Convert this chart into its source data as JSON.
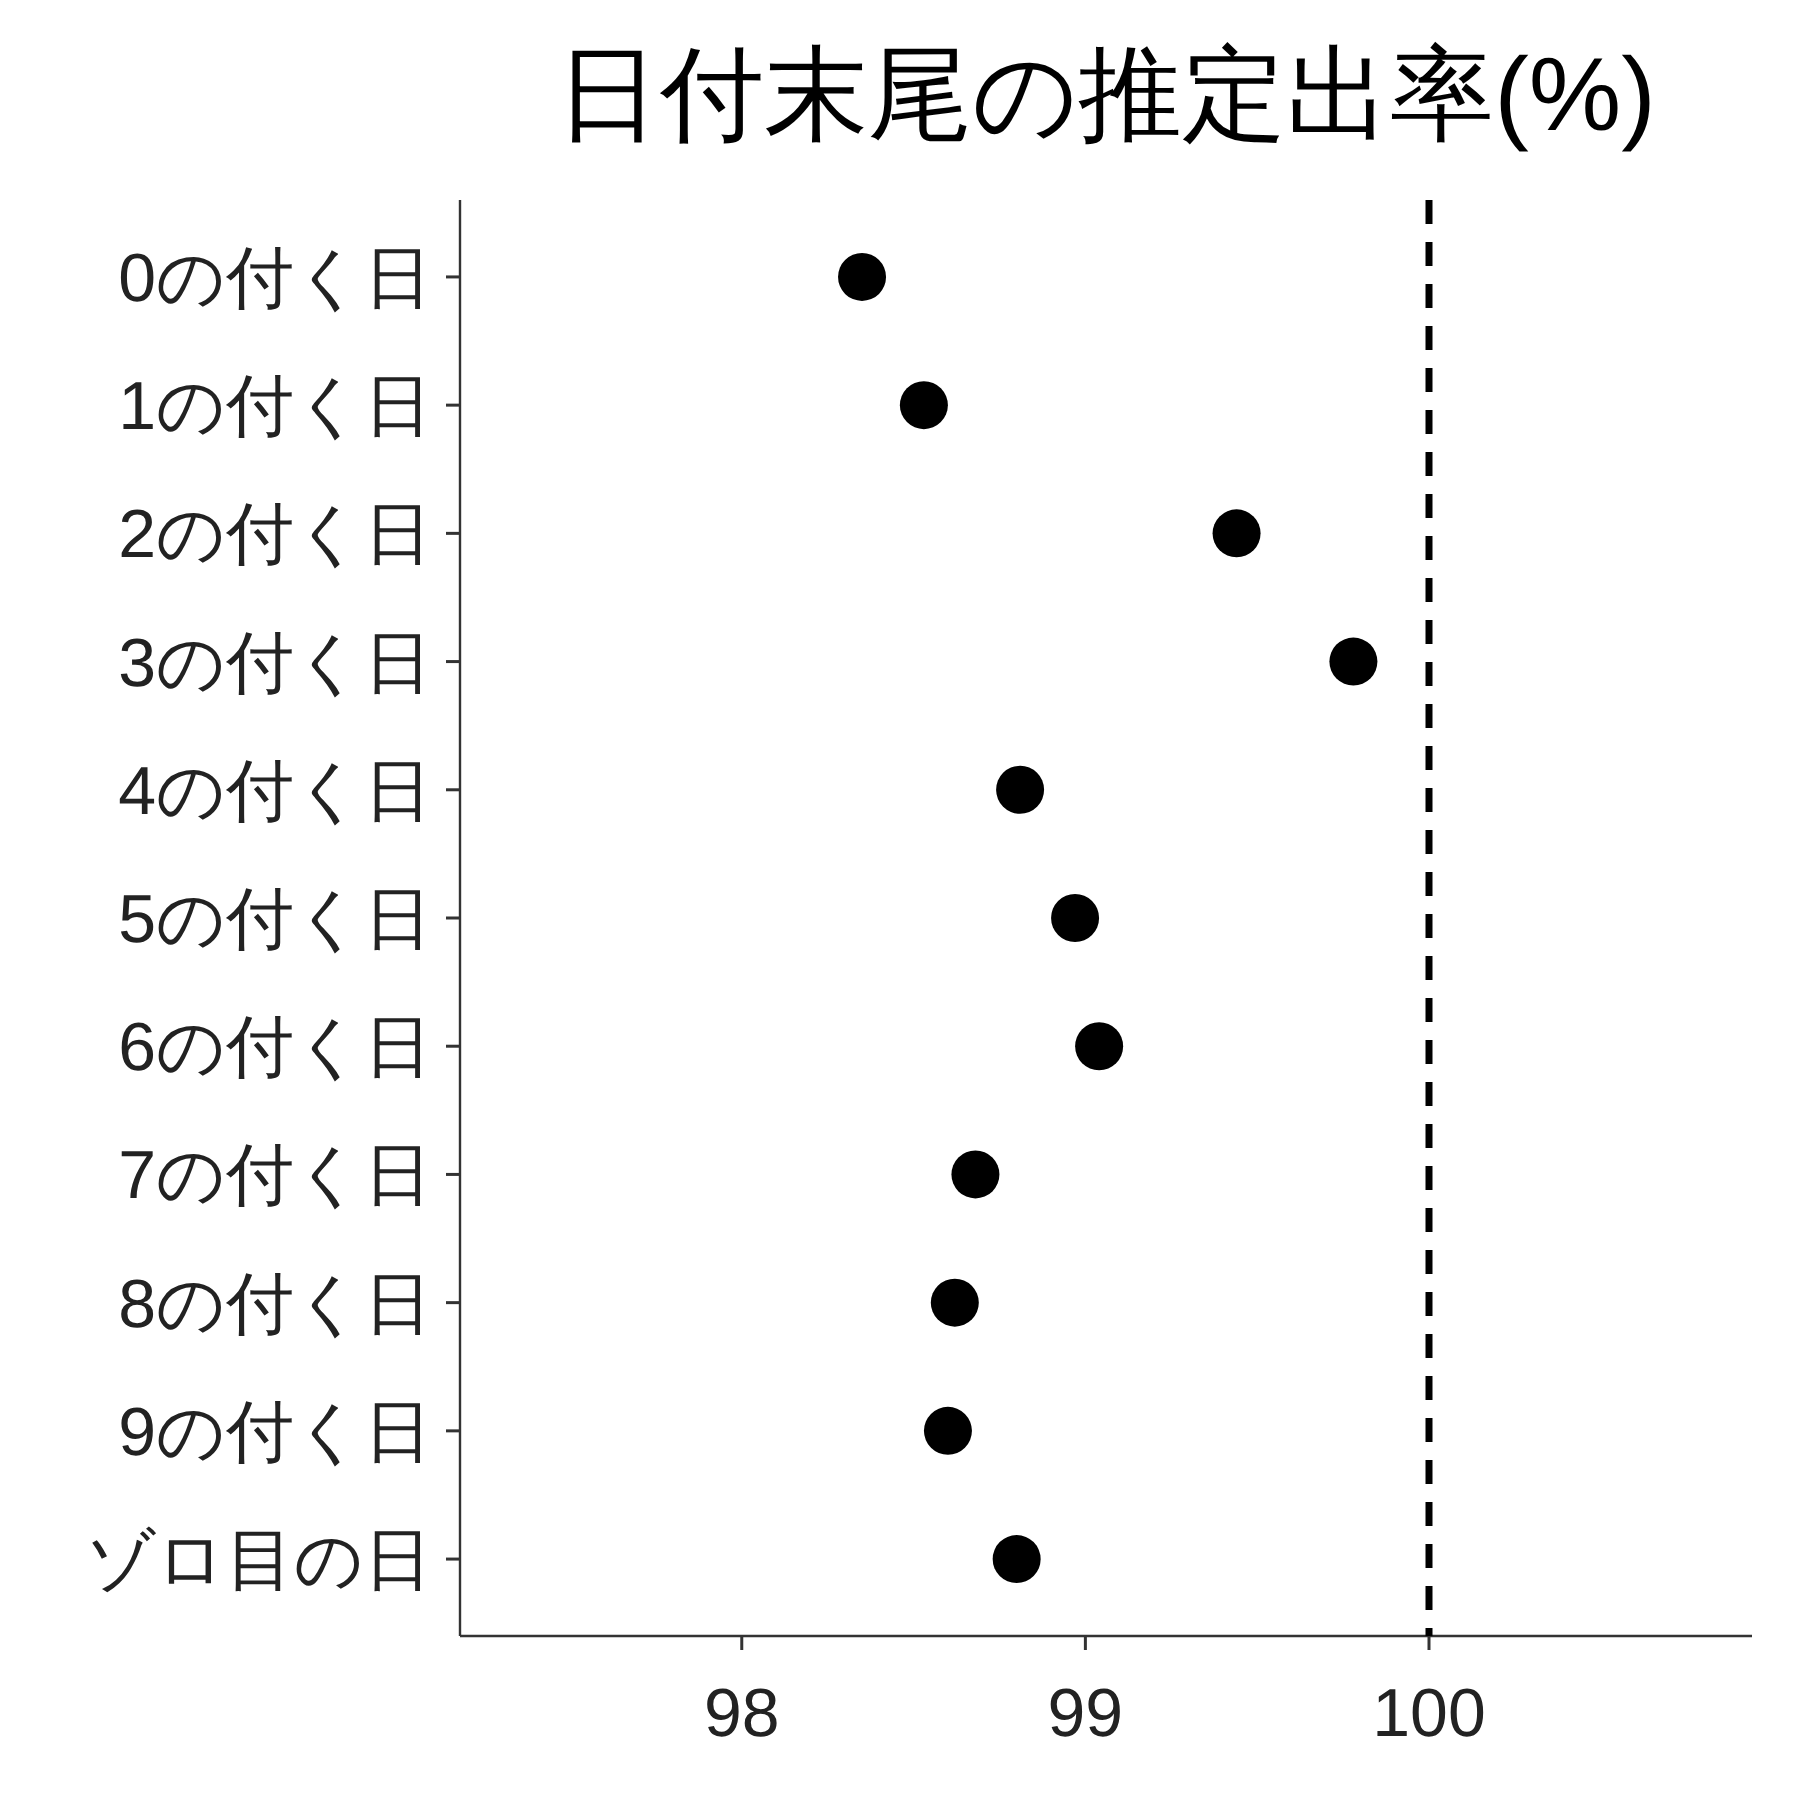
{
  "chart_data": {
    "type": "scatter",
    "orientation": "horizontal",
    "title": "日付末尾の推定出率(%)",
    "categories": [
      "0の付く日",
      "1の付く日",
      "2の付く日",
      "3の付く日",
      "4の付く日",
      "5の付く日",
      "6の付く日",
      "7の付く日",
      "8の付く日",
      "9の付く日",
      "ゾロ目の日"
    ],
    "values": [
      98.35,
      98.53,
      99.44,
      99.78,
      98.81,
      98.97,
      99.04,
      98.68,
      98.62,
      98.6,
      98.8
    ],
    "color": "#000000",
    "marker": "circle",
    "xlim": [
      97.18,
      100.94
    ],
    "xticks": [
      98,
      99,
      100
    ],
    "ref_lines": [
      {
        "axis": "x",
        "value": 100,
        "label": null,
        "color": "#000000",
        "line_style": "dashed"
      }
    ],
    "grid": false
  }
}
